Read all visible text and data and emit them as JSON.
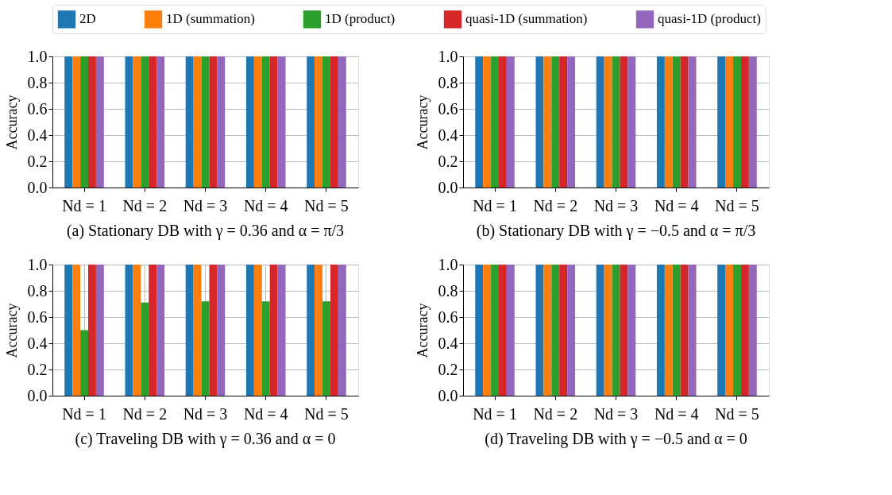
{
  "chart_data": [
    {
      "type": "bar",
      "title": "(a) Stationary DB with γ = 0.36 and α = π/3",
      "ylabel": "Accuracy",
      "categories": [
        "Nd = 1",
        "Nd = 2",
        "Nd = 3",
        "Nd = 4",
        "Nd = 5"
      ],
      "ylim": [
        0,
        1
      ],
      "yticks": [
        {
          "value": 0,
          "label": "0.0"
        },
        {
          "value": 0.2,
          "label": "0.2"
        },
        {
          "value": 0.4,
          "label": "0.4"
        },
        {
          "value": 0.6,
          "label": "0.6"
        },
        {
          "value": 0.8,
          "label": "0.8"
        },
        {
          "value": 1,
          "label": "1.0"
        }
      ],
      "grid": true,
      "legend": "top",
      "series": [
        {
          "name": "2D",
          "color": "#1f77b4",
          "values": [
            1,
            1,
            1,
            1,
            1
          ]
        },
        {
          "name": "1D (summation)",
          "color": "#ff7f0e",
          "values": [
            1,
            1,
            1,
            1,
            1
          ]
        },
        {
          "name": "1D (product)",
          "color": "#2ca02c",
          "values": [
            1,
            1,
            1,
            1,
            1
          ]
        },
        {
          "name": "quasi-1D (summation)",
          "color": "#d62728",
          "values": [
            1,
            1,
            1,
            1,
            1
          ]
        },
        {
          "name": "quasi-1D (product)",
          "color": "#9467bd",
          "values": [
            1,
            1,
            1,
            1,
            1
          ]
        }
      ]
    },
    {
      "type": "bar",
      "title": "(b) Stationary DB with γ = −0.5 and α = π/3",
      "ylabel": "Accuracy",
      "categories": [
        "Nd = 1",
        "Nd = 2",
        "Nd = 3",
        "Nd = 4",
        "Nd = 5"
      ],
      "ylim": [
        0,
        1
      ],
      "yticks": [
        {
          "value": 0,
          "label": "0.0"
        },
        {
          "value": 0.2,
          "label": "0.2"
        },
        {
          "value": 0.4,
          "label": "0.4"
        },
        {
          "value": 0.6,
          "label": "0.6"
        },
        {
          "value": 0.8,
          "label": "0.8"
        },
        {
          "value": 1,
          "label": "1.0"
        }
      ],
      "grid": true,
      "legend": "top",
      "series": [
        {
          "name": "2D",
          "color": "#1f77b4",
          "values": [
            1,
            1,
            1,
            1,
            1
          ]
        },
        {
          "name": "1D (summation)",
          "color": "#ff7f0e",
          "values": [
            1,
            1,
            1,
            1,
            1
          ]
        },
        {
          "name": "1D (product)",
          "color": "#2ca02c",
          "values": [
            1,
            1,
            1,
            1,
            1
          ]
        },
        {
          "name": "quasi-1D (summation)",
          "color": "#d62728",
          "values": [
            1,
            1,
            1,
            1,
            1
          ]
        },
        {
          "name": "quasi-1D (product)",
          "color": "#9467bd",
          "values": [
            1,
            1,
            1,
            1,
            1
          ]
        }
      ]
    },
    {
      "type": "bar",
      "title": "(c) Traveling DB with γ = 0.36 and α = 0",
      "ylabel": "Accuracy",
      "categories": [
        "Nd = 1",
        "Nd = 2",
        "Nd = 3",
        "Nd = 4",
        "Nd = 5"
      ],
      "ylim": [
        0,
        1
      ],
      "yticks": [
        {
          "value": 0,
          "label": "0.0"
        },
        {
          "value": 0.2,
          "label": "0.2"
        },
        {
          "value": 0.4,
          "label": "0.4"
        },
        {
          "value": 0.6,
          "label": "0.6"
        },
        {
          "value": 0.8,
          "label": "0.8"
        },
        {
          "value": 1,
          "label": "1.0"
        }
      ],
      "grid": true,
      "legend": "top",
      "series": [
        {
          "name": "2D",
          "color": "#1f77b4",
          "values": [
            1,
            1,
            1,
            1,
            1
          ]
        },
        {
          "name": "1D (summation)",
          "color": "#ff7f0e",
          "values": [
            1,
            1,
            1,
            1,
            1
          ]
        },
        {
          "name": "1D (product)",
          "color": "#2ca02c",
          "values": [
            0.5,
            0.71,
            0.72,
            0.72,
            0.72
          ]
        },
        {
          "name": "quasi-1D (summation)",
          "color": "#d62728",
          "values": [
            1,
            1,
            1,
            1,
            1
          ]
        },
        {
          "name": "quasi-1D (product)",
          "color": "#9467bd",
          "values": [
            1,
            1,
            1,
            1,
            1
          ]
        }
      ]
    },
    {
      "type": "bar",
      "title": "(d) Traveling DB with γ = −0.5 and α = 0",
      "ylabel": "Accuracy",
      "categories": [
        "Nd = 1",
        "Nd = 2",
        "Nd = 3",
        "Nd = 4",
        "Nd = 5"
      ],
      "ylim": [
        0,
        1
      ],
      "yticks": [
        {
          "value": 0,
          "label": "0.0"
        },
        {
          "value": 0.2,
          "label": "0.2"
        },
        {
          "value": 0.4,
          "label": "0.4"
        },
        {
          "value": 0.6,
          "label": "0.6"
        },
        {
          "value": 0.8,
          "label": "0.8"
        },
        {
          "value": 1,
          "label": "1.0"
        }
      ],
      "grid": true,
      "legend": "top",
      "series": [
        {
          "name": "2D",
          "color": "#1f77b4",
          "values": [
            1,
            1,
            1,
            1,
            1
          ]
        },
        {
          "name": "1D (summation)",
          "color": "#ff7f0e",
          "values": [
            1,
            1,
            1,
            1,
            1
          ]
        },
        {
          "name": "1D (product)",
          "color": "#2ca02c",
          "values": [
            1,
            1,
            1,
            1,
            1
          ]
        },
        {
          "name": "quasi-1D (summation)",
          "color": "#d62728",
          "values": [
            1,
            1,
            1,
            1,
            1
          ]
        },
        {
          "name": "quasi-1D (product)",
          "color": "#9467bd",
          "values": [
            1,
            1,
            1,
            1,
            1
          ]
        }
      ]
    }
  ]
}
